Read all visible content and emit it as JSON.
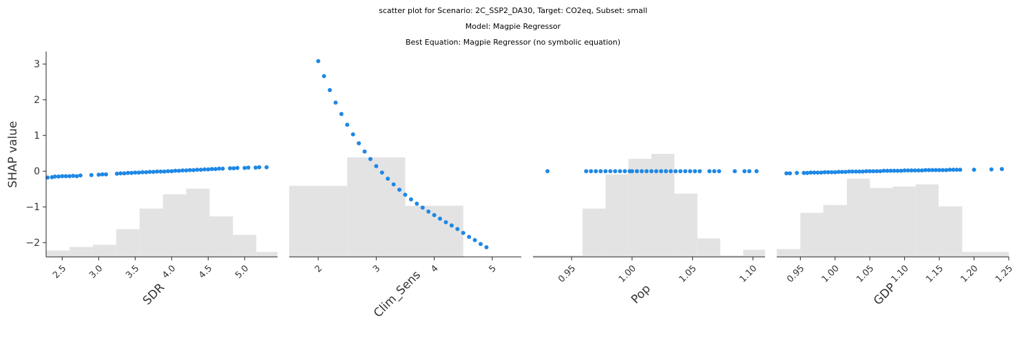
{
  "figure": {
    "title_lines": [
      "scatter plot for Scenario: 2C_SSP2_DA30, Target: CO2eq, Subset: small",
      "Model: Magpie Regressor",
      "Best Equation: Magpie Regressor (no symbolic equation)"
    ],
    "ylabel": "SHAP value"
  },
  "chart_data": [
    {
      "type": "scatter",
      "xlabel": "SDR",
      "ylabel": "SHAP value",
      "ylim": [
        -2.4,
        3.35
      ],
      "xlim": [
        2.28,
        5.45
      ],
      "xticks": [
        2.5,
        3.0,
        3.5,
        4.0,
        4.5,
        5.0
      ],
      "xtick_labels": [
        "2.5",
        "3.0",
        "3.5",
        "4.0",
        "4.5",
        "5.0"
      ],
      "yticks": [
        -2,
        -1,
        0,
        1,
        2,
        3
      ],
      "ytick_labels": [
        "−2",
        "−1",
        "0",
        "1",
        "2",
        "3"
      ],
      "point_color": "#1e88e5",
      "points": {
        "x": [
          2.3,
          2.36,
          2.4,
          2.45,
          2.5,
          2.55,
          2.6,
          2.65,
          2.7,
          2.75,
          2.9,
          3.0,
          3.05,
          3.1,
          3.25,
          3.3,
          3.35,
          3.4,
          3.45,
          3.5,
          3.55,
          3.6,
          3.65,
          3.7,
          3.75,
          3.8,
          3.85,
          3.9,
          3.95,
          4.0,
          4.05,
          4.1,
          4.15,
          4.2,
          4.25,
          4.3,
          4.35,
          4.4,
          4.45,
          4.5,
          4.55,
          4.6,
          4.65,
          4.7,
          4.8,
          4.85,
          4.9,
          5.0,
          5.05,
          5.15,
          5.2,
          5.3
        ],
        "y": [
          -0.18,
          -0.17,
          -0.15,
          -0.15,
          -0.14,
          -0.14,
          -0.14,
          -0.13,
          -0.14,
          -0.12,
          -0.11,
          -0.1,
          -0.09,
          -0.09,
          -0.07,
          -0.06,
          -0.06,
          -0.05,
          -0.05,
          -0.04,
          -0.04,
          -0.03,
          -0.03,
          -0.02,
          -0.02,
          -0.01,
          -0.01,
          -0.01,
          0.0,
          0.0,
          0.01,
          0.01,
          0.02,
          0.02,
          0.03,
          0.03,
          0.04,
          0.04,
          0.05,
          0.05,
          0.06,
          0.06,
          0.07,
          0.07,
          0.08,
          0.08,
          0.09,
          0.09,
          0.1,
          0.1,
          0.11,
          0.11
        ]
      },
      "histogram": {
        "bin_edges": [
          2.28,
          2.6,
          2.92,
          3.24,
          3.56,
          3.88,
          4.2,
          4.52,
          4.84,
          5.16,
          5.45
        ],
        "heights": [
          0.09,
          0.14,
          0.17,
          0.39,
          0.68,
          0.88,
          0.96,
          0.57,
          0.31,
          0.07
        ]
      }
    },
    {
      "type": "scatter",
      "xlabel": "Clim_Sens",
      "ylabel": "SHAP value",
      "ylim": [
        -2.4,
        3.35
      ],
      "xlim": [
        1.5,
        5.5
      ],
      "xticks": [
        2,
        3,
        4,
        5
      ],
      "xtick_labels": [
        "2",
        "3",
        "4",
        "5"
      ],
      "yticks": [
        -2,
        -1,
        0,
        1,
        2,
        3
      ],
      "ytick_labels": [
        "−2",
        "−1",
        "0",
        "1",
        "2",
        "3"
      ],
      "point_color": "#1e88e5",
      "points": {
        "x": [
          2.0,
          2.1,
          2.2,
          2.3,
          2.4,
          2.5,
          2.6,
          2.7,
          2.8,
          2.9,
          3.0,
          3.1,
          3.2,
          3.3,
          3.4,
          3.5,
          3.6,
          3.7,
          3.8,
          3.9,
          4.0,
          4.1,
          4.2,
          4.3,
          4.4,
          4.5,
          4.6,
          4.7,
          4.8,
          4.9
        ],
        "y": [
          3.08,
          2.66,
          2.27,
          1.92,
          1.6,
          1.3,
          1.03,
          0.78,
          0.55,
          0.34,
          0.14,
          -0.04,
          -0.21,
          -0.37,
          -0.52,
          -0.66,
          -0.79,
          -0.91,
          -1.02,
          -1.13,
          -1.23,
          -1.33,
          -1.43,
          -1.52,
          -1.62,
          -1.73,
          -1.84,
          -1.93,
          -2.04,
          -2.13
        ]
      },
      "histogram": {
        "bin_edges": [
          1.5,
          2.5,
          3.5,
          4.5,
          5.5
        ],
        "heights": [
          1.0,
          1.4,
          0.72,
          0.0
        ]
      }
    },
    {
      "type": "scatter",
      "xlabel": "Pop",
      "ylabel": "SHAP value",
      "ylim": [
        -2.4,
        3.35
      ],
      "xlim": [
        0.918,
        1.11
      ],
      "xticks": [
        0.95,
        1.0,
        1.05,
        1.1
      ],
      "xtick_labels": [
        "0.95",
        "1.00",
        "1.05",
        "1.10"
      ],
      "yticks": [
        -2,
        -1,
        0,
        1,
        2,
        3
      ],
      "ytick_labels": [
        "−2",
        "−1",
        "0",
        "1",
        "2",
        "3"
      ],
      "point_color": "#1e88e5",
      "points": {
        "x": [
          0.93,
          0.962,
          0.966,
          0.97,
          0.974,
          0.978,
          0.982,
          0.986,
          0.99,
          0.994,
          0.998,
          1.0,
          1.004,
          1.008,
          1.012,
          1.016,
          1.02,
          1.024,
          1.028,
          1.032,
          1.036,
          1.04,
          1.044,
          1.048,
          1.052,
          1.056,
          1.064,
          1.068,
          1.072,
          1.085,
          1.093,
          1.097,
          1.103
        ],
        "y": [
          0.0,
          0.0,
          0.0,
          0.0,
          0.0,
          0.0,
          0.0,
          0.0,
          0.0,
          0.0,
          0.0,
          0.0,
          0.0,
          0.0,
          0.0,
          0.0,
          0.0,
          0.0,
          0.0,
          0.0,
          0.0,
          0.0,
          0.0,
          0.0,
          0.0,
          0.0,
          0.0,
          0.0,
          0.0,
          0.0,
          0.0,
          0.0,
          0.0
        ]
      },
      "histogram": {
        "bin_edges": [
          0.918,
          0.94,
          0.959,
          0.978,
          0.997,
          1.016,
          1.035,
          1.054,
          1.073,
          1.092,
          1.11
        ],
        "heights": [
          0.02,
          0.02,
          0.68,
          1.16,
          1.38,
          1.45,
          0.89,
          0.26,
          0.02,
          0.1
        ]
      }
    },
    {
      "type": "scatter",
      "xlabel": "GDP",
      "ylabel": "SHAP value",
      "ylim": [
        -2.4,
        3.35
      ],
      "xlim": [
        0.916,
        1.25
      ],
      "xticks": [
        0.95,
        1.0,
        1.05,
        1.1,
        1.15,
        1.2,
        1.25
      ],
      "xtick_labels": [
        "0.95",
        "1.00",
        "1.05",
        "1.10",
        "1.15",
        "1.20",
        "1.25"
      ],
      "yticks": [
        -2,
        -1,
        0,
        1,
        2,
        3
      ],
      "ytick_labels": [
        "−2",
        "−1",
        "0",
        "1",
        "2",
        "3"
      ],
      "point_color": "#1e88e5",
      "points": {
        "x": [
          0.93,
          0.935,
          0.945,
          0.955,
          0.96,
          0.965,
          0.97,
          0.975,
          0.98,
          0.985,
          0.99,
          0.995,
          1.0,
          1.005,
          1.01,
          1.015,
          1.02,
          1.025,
          1.03,
          1.035,
          1.04,
          1.045,
          1.05,
          1.055,
          1.06,
          1.065,
          1.07,
          1.075,
          1.08,
          1.085,
          1.09,
          1.095,
          1.1,
          1.105,
          1.11,
          1.115,
          1.12,
          1.125,
          1.13,
          1.135,
          1.14,
          1.145,
          1.15,
          1.155,
          1.16,
          1.165,
          1.17,
          1.175,
          1.18,
          1.2,
          1.225,
          1.24
        ],
        "y": [
          -0.06,
          -0.06,
          -0.05,
          -0.05,
          -0.05,
          -0.04,
          -0.04,
          -0.04,
          -0.04,
          -0.03,
          -0.03,
          -0.03,
          -0.03,
          -0.02,
          -0.02,
          -0.02,
          -0.01,
          -0.01,
          -0.01,
          -0.01,
          -0.01,
          0.0,
          0.0,
          0.0,
          0.0,
          0.0,
          0.01,
          0.01,
          0.01,
          0.01,
          0.01,
          0.01,
          0.02,
          0.02,
          0.02,
          0.02,
          0.02,
          0.02,
          0.03,
          0.03,
          0.03,
          0.03,
          0.03,
          0.03,
          0.03,
          0.04,
          0.04,
          0.04,
          0.04,
          0.04,
          0.05,
          0.06
        ]
      },
      "histogram": {
        "bin_edges": [
          0.916,
          0.95,
          0.983,
          1.017,
          1.05,
          1.083,
          1.116,
          1.149,
          1.183,
          1.216,
          1.25
        ],
        "heights": [
          0.11,
          0.62,
          0.73,
          1.1,
          0.97,
          0.99,
          1.02,
          0.71,
          0.07,
          0.07
        ]
      }
    }
  ]
}
